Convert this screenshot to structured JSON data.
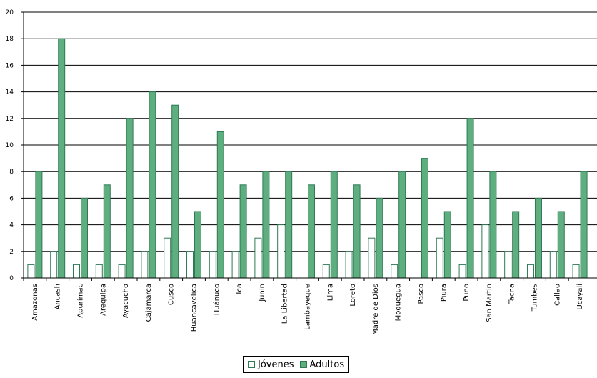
{
  "chart_data": {
    "type": "bar",
    "categories": [
      "Amazonas",
      "Ancash",
      "Apurímac",
      "Arequipa",
      "Ayacucho",
      "Cajamarca",
      "Cusco",
      "Huancavelica",
      "Huánuco",
      "Ica",
      "Junín",
      "La Libertad",
      "Lambayeque",
      "Lima",
      "Loreto",
      "Madre de Dios",
      "Moquegua",
      "Pasco",
      "Piura",
      "Puno",
      "San Martín",
      "Tacna",
      "Tumbes",
      "Callao",
      "Ucayali"
    ],
    "series": [
      {
        "name": "Jóvenes",
        "values": [
          1,
          2,
          1,
          1,
          1,
          2,
          3,
          2,
          2,
          2,
          3,
          4,
          0,
          1,
          2,
          3,
          1,
          0,
          3,
          1,
          4,
          2,
          1,
          2,
          1
        ]
      },
      {
        "name": "Adultos",
        "values": [
          8,
          18,
          6,
          7,
          12,
          14,
          13,
          5,
          11,
          7,
          8,
          8,
          7,
          8,
          7,
          6,
          8,
          9,
          5,
          12,
          8,
          5,
          6,
          5,
          8
        ]
      }
    ],
    "ylim": [
      0,
      20
    ],
    "yticks": [
      0,
      2,
      4,
      6,
      8,
      10,
      12,
      14,
      16,
      18,
      20
    ],
    "grid": true,
    "legend_position": "bottom",
    "colors": {
      "Jóvenes": "#ffffff",
      "Adultos": "#5fae80",
      "bar_border": "#2f7a55"
    }
  }
}
